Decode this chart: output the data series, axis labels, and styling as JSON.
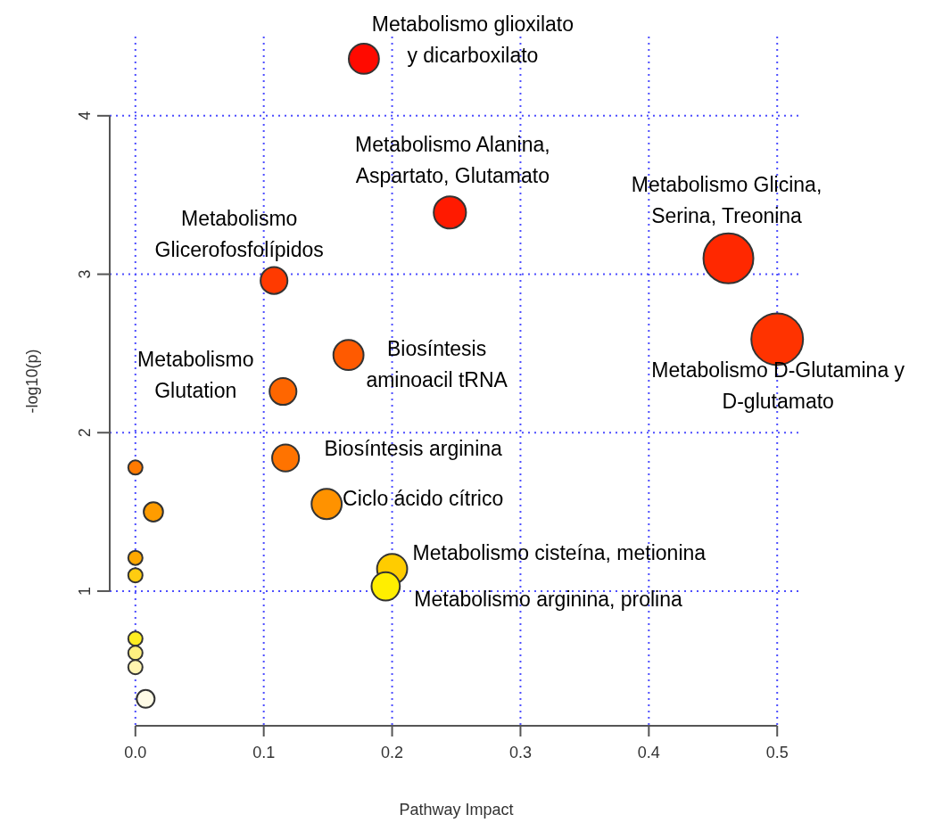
{
  "chart_data": {
    "type": "bubble",
    "xlabel": "Pathway Impact",
    "ylabel": "-log10(p)",
    "x": [
      0.178,
      0.245,
      0.462,
      0.5,
      0.108,
      0.166,
      0.115,
      0.117,
      0.149,
      0.2,
      0.195,
      0.0,
      0.014,
      0.0,
      0.0,
      0.0,
      0.0,
      0.0,
      0.008
    ],
    "values": [
      4.36,
      3.39,
      3.1,
      2.59,
      2.96,
      2.49,
      2.26,
      1.84,
      1.55,
      1.14,
      1.03,
      1.78,
      1.5,
      1.21,
      1.1,
      0.7,
      0.61,
      0.52,
      0.32
    ],
    "sizes": [
      0.34,
      0.39,
      0.93,
      1,
      0.27,
      0.34,
      0.27,
      0.27,
      0.34,
      0.34,
      0.3,
      0.076,
      0.14,
      0.076,
      0.076,
      0.076,
      0.076,
      0.076,
      0.12
    ],
    "colors": [
      "#ff0a00",
      "#ff1a00",
      "#ff2800",
      "#ff3300",
      "#ff3a00",
      "#ff5a00",
      "#ff6600",
      "#ff7300",
      "#ff9200",
      "#ffcc00",
      "#ffee00",
      "#ff7a00",
      "#ff9c00",
      "#ffa800",
      "#ffcc10",
      "#ffee20",
      "#fff080",
      "#fff4b0",
      "#fffbe6"
    ],
    "xlim": [
      -0.02,
      0.52
    ],
    "xticks": [
      {
        "value": 0,
        "label": "0.0"
      },
      0.1,
      0.2,
      0.3,
      0.4,
      0.5
    ],
    "ylim": [
      0.15,
      4.5
    ],
    "yticks": [
      1,
      2,
      3,
      4
    ],
    "grid": true,
    "marker": "circle",
    "annotations": [
      {
        "text": "Metabolismo glioxilato\ny dicarboxilato",
        "x": 0.178,
        "y": 4.36
      },
      {
        "text": "Metabolismo Alanina,\nAspartato, Glutamato",
        "x": 0.245,
        "y": 3.39
      },
      {
        "text": "Metabolismo Glicina,\nSerina, Treonina",
        "x": 0.462,
        "y": 3.1
      },
      {
        "text": "Metabolismo D-Glutamina y\nD-glutamato",
        "x": 0.5,
        "y": 2.59
      },
      {
        "text": "Metabolismo\nGlicerofosfolípidos",
        "x": 0.108,
        "y": 2.96
      },
      {
        "text": "Biosíntesis\naminoacil tRNA",
        "x": 0.166,
        "y": 2.49
      },
      {
        "text": "Metabolismo\nGlutation",
        "x": 0.115,
        "y": 2.26
      },
      {
        "text": "Biosíntesis arginina",
        "x": 0.117,
        "y": 1.84
      },
      {
        "text": "Ciclo ácido cítrico",
        "x": 0.149,
        "y": 1.55
      },
      {
        "text": "Metabolismo cisteína, metionina",
        "x": 0.2,
        "y": 1.14
      },
      {
        "text": "Metabolismo arginina, prolina",
        "x": 0.195,
        "y": 1.03
      }
    ]
  }
}
